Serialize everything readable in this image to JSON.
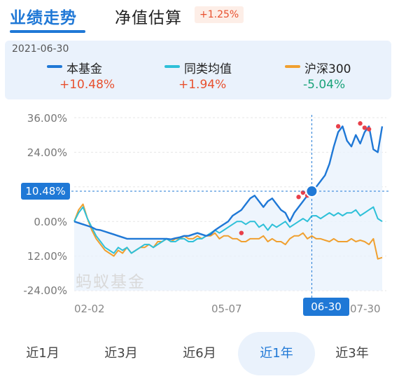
{
  "tabs": {
    "performance": "业绩走势",
    "estimate": "净值估算",
    "estimate_change": "+1.25%"
  },
  "legend": {
    "date": "2021-06-30",
    "items": [
      {
        "name": "本基金",
        "value": "+10.48%",
        "line_color": "#1f78d6",
        "value_color": "#e8502e"
      },
      {
        "name": "同类均值",
        "value": "+1.94%",
        "line_color": "#2ec0d8",
        "value_color": "#e8502e"
      },
      {
        "name": "沪深300",
        "value": "-5.04%",
        "line_color": "#f0a030",
        "value_color": "#1aa37a"
      }
    ]
  },
  "chart_data": {
    "type": "line",
    "title": "",
    "y_tick_labels": [
      "36.00%",
      "24.00%",
      "12.00%",
      "0.00%",
      "-12.00%",
      "-24.00%"
    ],
    "ylim": [
      -24,
      36
    ],
    "x_tick_labels": [
      "02-02",
      "05-07",
      "07-30"
    ],
    "current_value_label": "10.48%",
    "current_date_label": "06-30",
    "series": [
      {
        "name": "本基金",
        "color": "#1f78d6",
        "values": [
          0,
          -0.5,
          -1,
          -1.5,
          -2,
          -2.8,
          -3,
          -3.5,
          -4,
          -4.5,
          -5,
          -5.5,
          -6,
          -6,
          -6,
          -6,
          -6,
          -6,
          -6,
          -6,
          -6,
          -6,
          -6.2,
          -5.8,
          -5.5,
          -5,
          -5,
          -4.5,
          -4,
          -4.5,
          -5,
          -4.5,
          -3,
          -2,
          -1,
          0,
          2,
          3,
          4,
          6,
          8,
          9,
          7,
          5,
          7,
          8,
          6,
          4,
          3,
          0,
          3,
          5,
          7,
          9,
          10.48,
          12,
          14,
          16,
          20,
          26,
          31,
          33,
          28,
          26,
          30,
          27,
          31,
          33,
          25,
          24,
          33
        ]
      },
      {
        "name": "同类均值",
        "color": "#2ec0d8",
        "values": [
          0,
          3,
          5,
          1,
          -2,
          -5,
          -7,
          -9,
          -10,
          -11,
          -9,
          -10,
          -9,
          -11,
          -10,
          -9,
          -8,
          -8,
          -9,
          -8,
          -7,
          -6,
          -7,
          -7,
          -6,
          -6,
          -7,
          -7,
          -6,
          -6,
          -5,
          -4,
          -3,
          -4,
          -3,
          -2,
          -1,
          0,
          0,
          -1,
          0,
          0,
          -2,
          -1,
          -3,
          -1,
          -2,
          -1,
          0,
          -2,
          -1,
          0,
          1,
          0,
          1.94,
          2,
          1,
          2,
          3,
          2,
          3,
          2,
          3,
          3,
          4,
          2,
          3,
          4,
          5,
          1,
          0
        ]
      },
      {
        "name": "沪深300",
        "color": "#f0a030",
        "values": [
          0,
          4,
          6,
          1,
          -3,
          -6,
          -8,
          -10,
          -11,
          -12,
          -10,
          -11,
          -9,
          -11,
          -10,
          -9,
          -9,
          -8,
          -9,
          -7,
          -7,
          -6,
          -7,
          -6,
          -6,
          -5,
          -6,
          -6,
          -5,
          -6,
          -5,
          -5,
          -4,
          -6,
          -5,
          -5,
          -6,
          -6,
          -7,
          -7,
          -6,
          -6,
          -6,
          -5,
          -7,
          -6,
          -7,
          -7,
          -8,
          -6,
          -5,
          -5,
          -4,
          -6,
          -5.04,
          -6,
          -6,
          -6.5,
          -7,
          -6,
          -7,
          -7,
          -7,
          -6,
          -7,
          -6.5,
          -7,
          -8,
          -6,
          -13,
          -12.5
        ]
      }
    ],
    "markers": [
      {
        "index": 38,
        "value": -4.0
      },
      {
        "index": 51,
        "value": 8.5
      },
      {
        "index": 52,
        "value": 10.0
      },
      {
        "index": 53,
        "value": 9.0
      },
      {
        "index": 60,
        "value": 33.0
      },
      {
        "index": 65,
        "value": 34.0
      },
      {
        "index": 66,
        "value": 32.5
      },
      {
        "index": 67,
        "value": 32.0
      }
    ],
    "current_index": 54,
    "grid": true
  },
  "watermark": "蚂蚁基金",
  "ranges": {
    "items": [
      "近1月",
      "近3月",
      "近6月",
      "近1年",
      "近3年"
    ],
    "active_index": 3
  }
}
